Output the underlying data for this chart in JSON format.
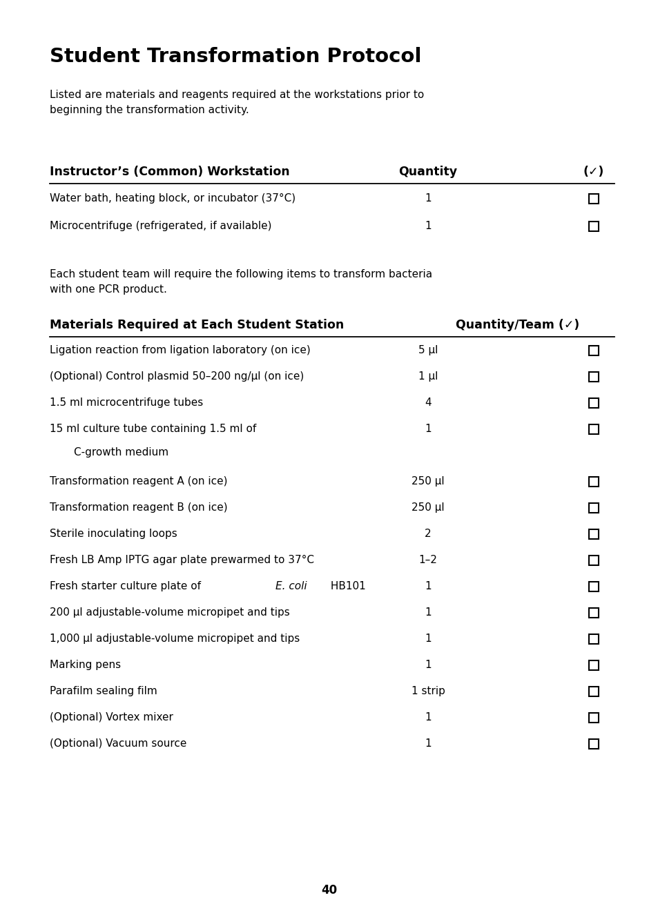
{
  "title": "Student Transformation Protocol",
  "intro_text": "Listed are materials and reagents required at the workstations prior to\nbeginning the transformation activity.",
  "section1_header": "Instructor’s (Common) Workstation",
  "section1_qty_header": "Quantity",
  "section1_check_header": "(✓)",
  "section1_rows": [
    {
      "item": "Water bath, heating block, or incubator (37°C)",
      "qty": "1"
    },
    {
      "item": "Microcentrifuge (refrigerated, if available)",
      "qty": "1"
    }
  ],
  "middle_text": "Each student team will require the following items to transform bacteria\nwith one PCR product.",
  "section2_header": "Materials Required at Each Student Station",
  "section2_qty_header": "Quantity/Team (✓)",
  "section2_rows": [
    {
      "item": "Ligation reaction from ligation laboratory (on ice)",
      "qty": "5 µl",
      "italic_part": null,
      "multiline": false
    },
    {
      "item": "(Optional) Control plasmid 50–200 ng/µl (on ice)",
      "qty": "1 µl",
      "italic_part": null,
      "multiline": false
    },
    {
      "item": "1.5 ml microcentrifuge tubes",
      "qty": "4",
      "italic_part": null,
      "multiline": false
    },
    {
      "item": "15 ml culture tube containing 1.5 ml of",
      "item2": "    C-growth medium",
      "qty": "1",
      "italic_part": null,
      "multiline": true
    },
    {
      "item": "Transformation reagent A (on ice)",
      "qty": "250 µl",
      "italic_part": null,
      "multiline": false
    },
    {
      "item": "Transformation reagent B (on ice)",
      "qty": "250 µl",
      "italic_part": null,
      "multiline": false
    },
    {
      "item": "Sterile inoculating loops",
      "qty": "2",
      "italic_part": null,
      "multiline": false
    },
    {
      "item": "Fresh LB Amp IPTG agar plate prewarmed to 37°C",
      "qty": "1–2",
      "italic_part": null,
      "multiline": false
    },
    {
      "item": "Fresh starter culture plate of ",
      "item_italic": "E. coli",
      "item_suffix": " HB101",
      "qty": "1",
      "italic_part": "E. coli",
      "multiline": false
    },
    {
      "item": "200 µl adjustable-volume micropipet and tips",
      "qty": "1",
      "italic_part": null,
      "multiline": false
    },
    {
      "item": "1,000 µl adjustable-volume micropipet and tips",
      "qty": "1",
      "italic_part": null,
      "multiline": false
    },
    {
      "item": "Marking pens",
      "qty": "1",
      "italic_part": null,
      "multiline": false
    },
    {
      "item": "Parafilm sealing film",
      "qty": "1 strip",
      "italic_part": null,
      "multiline": false
    },
    {
      "item": "(Optional) Vortex mixer",
      "qty": "1",
      "italic_part": null,
      "multiline": false
    },
    {
      "item": "(Optional) Vacuum source",
      "qty": "1",
      "italic_part": null,
      "multiline": false
    }
  ],
  "page_number": "40",
  "background_color": "#ffffff",
  "text_color": "#000000"
}
